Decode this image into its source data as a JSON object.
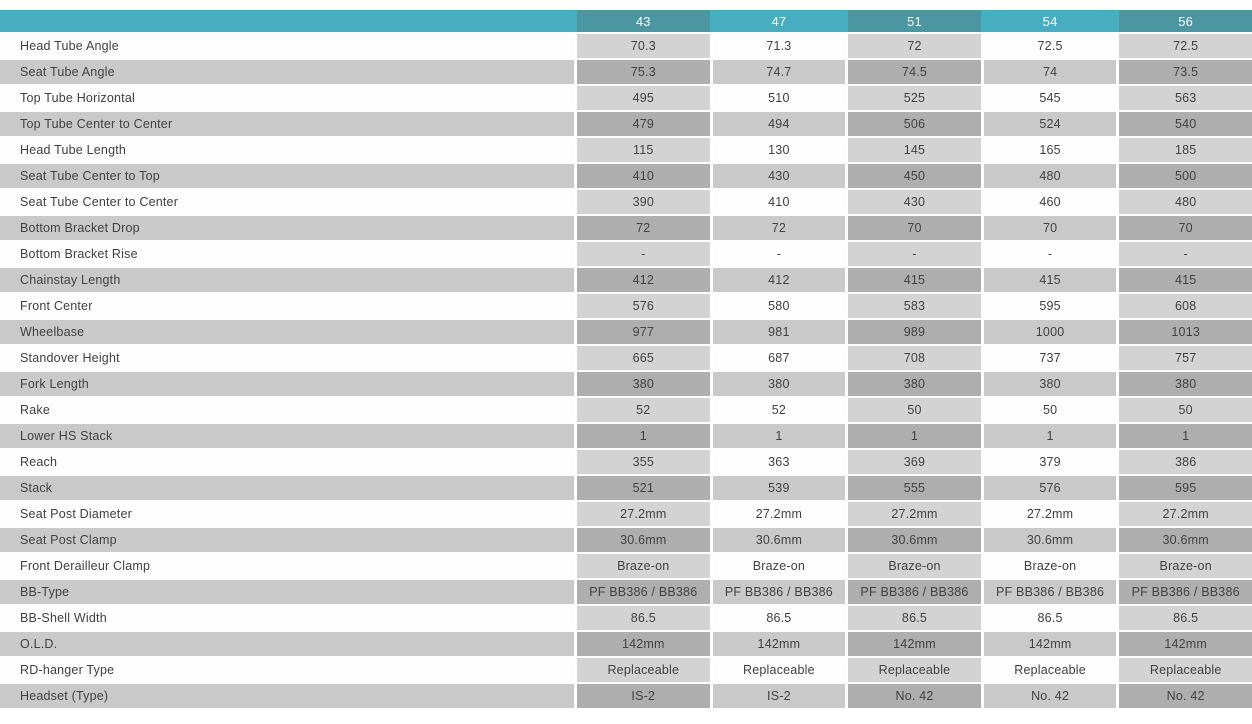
{
  "chart_data": {
    "type": "table",
    "title": "Bike frame geometry specification table",
    "legend_position": "none",
    "size_columns": [
      "43",
      "47",
      "51",
      "54",
      "56"
    ],
    "shaded_column_indexes": [
      0,
      2,
      4
    ],
    "rows": [
      {
        "label": "Head Tube Angle",
        "values": [
          "70.3",
          "71.3",
          "72",
          "72.5",
          "72.5"
        ]
      },
      {
        "label": "Seat Tube Angle",
        "values": [
          "75.3",
          "74.7",
          "74.5",
          "74",
          "73.5"
        ]
      },
      {
        "label": "Top Tube Horizontal",
        "values": [
          "495",
          "510",
          "525",
          "545",
          "563"
        ]
      },
      {
        "label": "Top Tube Center to Center",
        "values": [
          "479",
          "494",
          "506",
          "524",
          "540"
        ]
      },
      {
        "label": "Head Tube Length",
        "values": [
          "115",
          "130",
          "145",
          "165",
          "185"
        ]
      },
      {
        "label": "Seat Tube Center to Top",
        "values": [
          "410",
          "430",
          "450",
          "480",
          "500"
        ]
      },
      {
        "label": "Seat Tube Center to Center",
        "values": [
          "390",
          "410",
          "430",
          "460",
          "480"
        ]
      },
      {
        "label": "Bottom Bracket Drop",
        "values": [
          "72",
          "72",
          "70",
          "70",
          "70"
        ]
      },
      {
        "label": "Bottom Bracket Rise",
        "values": [
          "-",
          "-",
          "-",
          "-",
          "-"
        ]
      },
      {
        "label": "Chainstay Length",
        "values": [
          "412",
          "412",
          "415",
          "415",
          "415"
        ]
      },
      {
        "label": "Front Center",
        "values": [
          "576",
          "580",
          "583",
          "595",
          "608"
        ]
      },
      {
        "label": "Wheelbase",
        "values": [
          "977",
          "981",
          "989",
          "1000",
          "1013"
        ]
      },
      {
        "label": "Standover Height",
        "values": [
          "665",
          "687",
          "708",
          "737",
          "757"
        ]
      },
      {
        "label": "Fork Length",
        "values": [
          "380",
          "380",
          "380",
          "380",
          "380"
        ]
      },
      {
        "label": "Rake",
        "values": [
          "52",
          "52",
          "50",
          "50",
          "50"
        ]
      },
      {
        "label": "Lower HS Stack",
        "values": [
          "1",
          "1",
          "1",
          "1",
          "1"
        ]
      },
      {
        "label": "Reach",
        "values": [
          "355",
          "363",
          "369",
          "379",
          "386"
        ]
      },
      {
        "label": "Stack",
        "values": [
          "521",
          "539",
          "555",
          "576",
          "595"
        ]
      },
      {
        "label": "Seat Post Diameter",
        "values": [
          "27.2mm",
          "27.2mm",
          "27.2mm",
          "27.2mm",
          "27.2mm"
        ]
      },
      {
        "label": "Seat Post Clamp",
        "values": [
          "30.6mm",
          "30.6mm",
          "30.6mm",
          "30.6mm",
          "30.6mm"
        ]
      },
      {
        "label": "Front Derailleur Clamp",
        "values": [
          "Braze-on",
          "Braze-on",
          "Braze-on",
          "Braze-on",
          "Braze-on"
        ]
      },
      {
        "label": "BB-Type",
        "values": [
          "PF BB386 / BB386",
          "PF BB386 / BB386",
          "PF BB386 / BB386",
          "PF BB386 / BB386",
          "PF BB386 / BB386"
        ]
      },
      {
        "label": "BB-Shell Width",
        "values": [
          "86.5",
          "86.5",
          "86.5",
          "86.5",
          "86.5"
        ]
      },
      {
        "label": "O.L.D.",
        "values": [
          "142mm",
          "142mm",
          "142mm",
          "142mm",
          "142mm"
        ]
      },
      {
        "label": "RD-hanger Type",
        "values": [
          "Replaceable",
          "Replaceable",
          "Replaceable",
          "Replaceable",
          "Replaceable"
        ]
      },
      {
        "label": "Headset (Type)",
        "values": [
          "IS-2",
          "IS-2",
          "No. 42",
          "No. 42",
          "No. 42"
        ]
      }
    ]
  },
  "colors": {
    "header_bg": "#47adc1",
    "header_alt_bg": "#4b96a1",
    "row_white": "#fdfdfd",
    "row_gray": "#c9c9c9",
    "shaded_on_white": "#d3d3d3",
    "shaded_on_gray": "#aeaeae",
    "text": "#414141",
    "header_text": "#ffffff"
  }
}
